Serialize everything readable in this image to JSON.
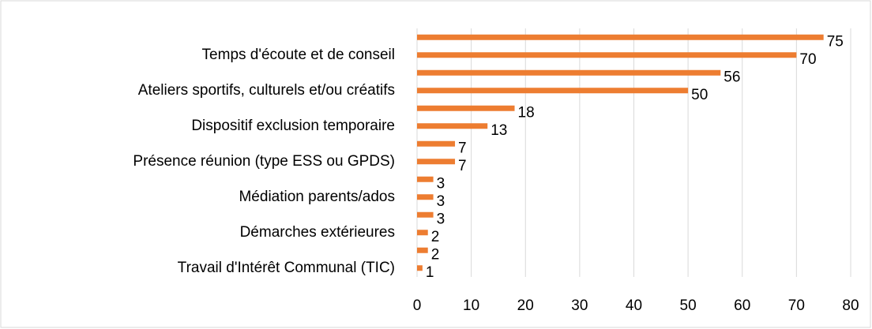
{
  "chart_data": {
    "type": "bar",
    "orientation": "horizontal",
    "categories": [
      null,
      "Temps d'écoute et de conseil",
      null,
      "Ateliers sportifs, culturels et/ou créatifs",
      null,
      "Dispositif exclusion temporaire",
      null,
      "Présence réunion (type ESS ou GPDS)",
      null,
      "Médiation parents/ados",
      null,
      "Démarches extérieures",
      null,
      "Travail d'Intérêt Communal (TIC)"
    ],
    "values": [
      75,
      70,
      56,
      50,
      18,
      13,
      7,
      7,
      3,
      3,
      3,
      2,
      2,
      1
    ],
    "color": "#ed7d31",
    "xlim": [
      0,
      80
    ],
    "xticks": [
      0,
      10,
      20,
      30,
      40,
      50,
      60,
      70,
      80
    ],
    "grid": true
  }
}
